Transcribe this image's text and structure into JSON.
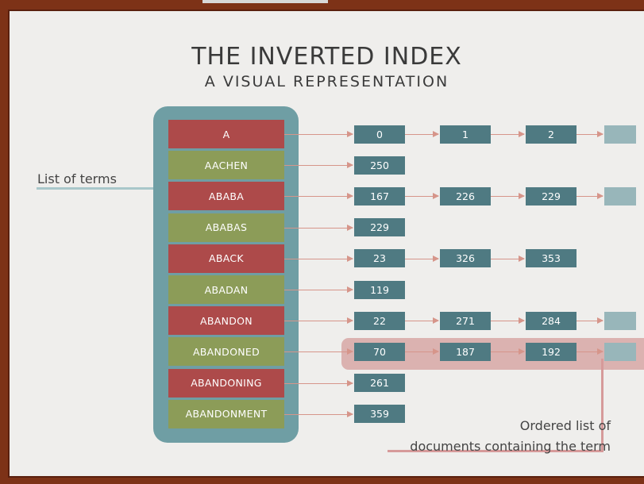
{
  "title": "THE INVERTED INDEX",
  "subtitle": "A VISUAL REPRESENTATION",
  "label_terms": "List of terms",
  "label_docs_line1": "Ordered list of",
  "label_docs_line2": "documents containing the term",
  "terms": [
    {
      "term": "A",
      "color": "red",
      "postings": [
        "0",
        "1",
        "2"
      ],
      "more": true
    },
    {
      "term": "AACHEN",
      "color": "green",
      "postings": [
        "250"
      ],
      "more": false
    },
    {
      "term": "ABABA",
      "color": "red",
      "postings": [
        "167",
        "226",
        "229"
      ],
      "more": true
    },
    {
      "term": "ABABAS",
      "color": "green",
      "postings": [
        "229"
      ],
      "more": false
    },
    {
      "term": "ABACK",
      "color": "red",
      "postings": [
        "23",
        "326",
        "353"
      ],
      "more": false
    },
    {
      "term": "ABADAN",
      "color": "green",
      "postings": [
        "119"
      ],
      "more": false
    },
    {
      "term": "ABANDON",
      "color": "red",
      "postings": [
        "22",
        "271",
        "284"
      ],
      "more": true
    },
    {
      "term": "ABANDONED",
      "color": "green",
      "postings": [
        "70",
        "187",
        "192"
      ],
      "more": true
    },
    {
      "term": "ABANDONING",
      "color": "red",
      "postings": [
        "261"
      ],
      "more": false
    },
    {
      "term": "ABANDONMENT",
      "color": "green",
      "postings": [
        "359"
      ],
      "more": false
    }
  ],
  "colors": {
    "term_red": "#ad4a4a",
    "term_green": "#8c9c58",
    "doc": "#4f7a82",
    "terms_panel": "#6f9ea4",
    "arrow": "#d6958a"
  }
}
